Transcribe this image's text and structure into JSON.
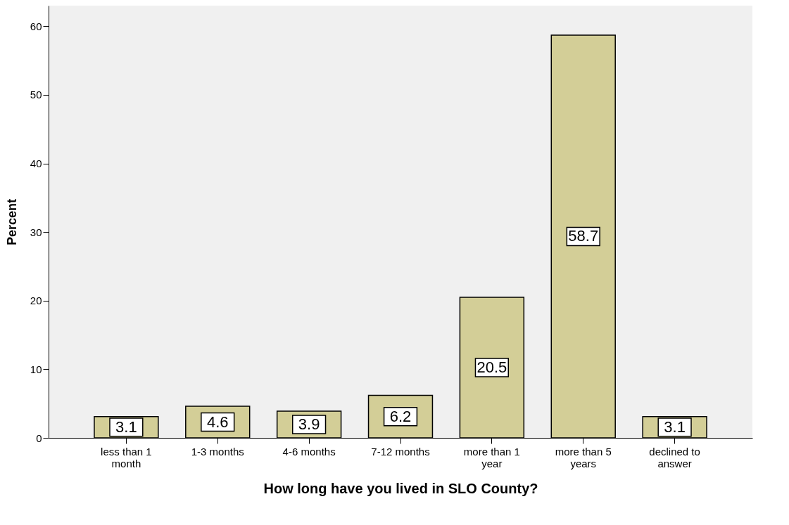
{
  "chart_data": {
    "type": "bar",
    "xlabel": "How long have you lived in SLO County?",
    "ylabel": "Percent",
    "categories": [
      "less than 1 month",
      "1-3 months",
      "4-6 months",
      "7-12 months",
      "more than 1 year",
      "more than 5 years",
      "declined to answer"
    ],
    "values": [
      3.1,
      4.6,
      3.9,
      6.2,
      20.5,
      58.7,
      3.1
    ],
    "color": "#d3ce97",
    "ylim": [
      0,
      63
    ],
    "yticks": [
      0,
      10,
      20,
      30,
      40,
      50,
      60
    ],
    "data_labels": true,
    "grid": false
  }
}
